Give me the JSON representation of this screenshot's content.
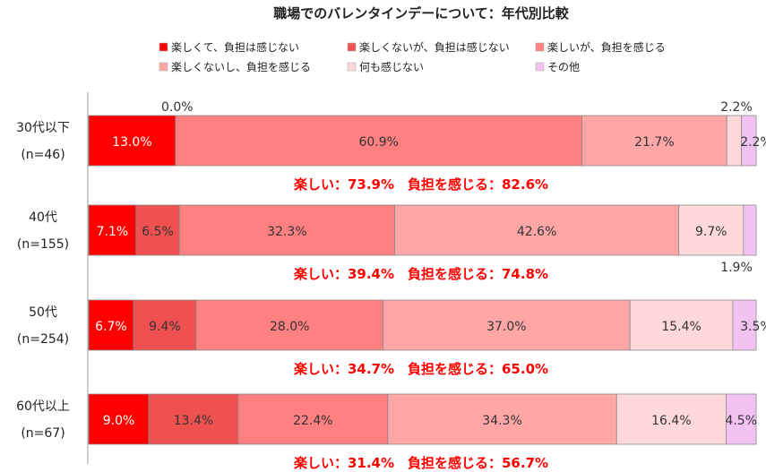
{
  "chart_data": {
    "type": "bar",
    "orientation": "horizontal",
    "stacked": true,
    "percent": true,
    "title": "職場でのバレンタインデーについて：年代別比較",
    "categories": [
      {
        "label": "30代以下",
        "n": "(n=46)"
      },
      {
        "label": "40代",
        "n": "(n=155)"
      },
      {
        "label": "50代",
        "n": "(n=254)"
      },
      {
        "label": "60代以上",
        "n": "(n=67)"
      }
    ],
    "series": [
      {
        "name": "楽しくて、負担は感じない",
        "color": "#ff0000",
        "values": [
          13.0,
          7.1,
          6.7,
          9.0
        ]
      },
      {
        "name": "楽しくないが、負担は感じない",
        "color": "#ef5050",
        "values": [
          0.0,
          6.5,
          9.4,
          13.4
        ]
      },
      {
        "name": "楽しいが、負担を感じる",
        "color": "#ff8080",
        "values": [
          60.9,
          32.3,
          28.0,
          22.4
        ]
      },
      {
        "name": "楽しくないし、負担を感じる",
        "color": "#ffa6a6",
        "values": [
          21.7,
          42.6,
          37.0,
          34.3
        ]
      },
      {
        "name": "何も感じない",
        "color": "#ffd9d9",
        "values": [
          2.2,
          9.7,
          15.4,
          16.4
        ]
      },
      {
        "name": "その他",
        "color": "#f2c2f2",
        "values": [
          2.2,
          1.9,
          3.5,
          4.5
        ]
      }
    ],
    "data_labels": [
      [
        "13.0%",
        "0.0%",
        "60.9%",
        "21.7%",
        "2.2%",
        "2.2%"
      ],
      [
        "7.1%",
        "6.5%",
        "32.3%",
        "42.6%",
        "9.7%",
        "1.9%"
      ],
      [
        "6.7%",
        "9.4%",
        "28.0%",
        "37.0%",
        "15.4%",
        "3.5%"
      ],
      [
        "9.0%",
        "13.4%",
        "22.4%",
        "34.3%",
        "16.4%",
        "4.5%"
      ]
    ],
    "summaries": [
      "楽しい：73.9%　負担を感じる：82.6%",
      "楽しい：39.4%　負担を感じる：74.8%",
      "楽しい：34.7%　負担を感じる：65.0%",
      "楽しい：31.4%　負担を感じる：56.7%"
    ],
    "xlim": [
      0,
      100
    ],
    "legend_position": "top"
  }
}
